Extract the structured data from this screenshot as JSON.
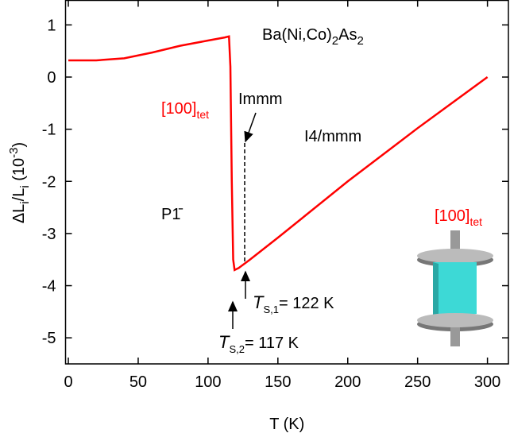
{
  "chart_data": {
    "type": "line",
    "x_label": "T (K)",
    "y_label": [
      {
        "text": "ΔL"
      },
      {
        "text": "i",
        "sub": true
      },
      {
        "text": "/L"
      },
      {
        "text": "i",
        "sub": true
      },
      {
        "text": " (10"
      },
      {
        "text": "-3",
        "sup": true
      },
      {
        "text": ")"
      }
    ],
    "xlim": [
      -2,
      315
    ],
    "ylim": [
      -5.5,
      1.47
    ],
    "xticks": [
      0,
      50,
      100,
      150,
      200,
      250,
      300
    ],
    "yticks": [
      -5,
      -4,
      -3,
      -2,
      -1,
      0,
      1
    ],
    "series": [
      {
        "color": "#ff0000",
        "x": [
          0,
          20,
          40,
          60,
          80,
          100,
          112,
          115,
          116,
          117,
          118,
          119,
          122,
          130,
          150,
          200,
          250,
          300
        ],
        "values": [
          0.32,
          0.32,
          0.36,
          0.47,
          0.6,
          0.7,
          0.76,
          0.78,
          0.2,
          -2,
          -3.5,
          -3.7,
          -3.66,
          -3.5,
          -3.08,
          -2.0,
          -0.98,
          0.0
        ]
      }
    ],
    "annotations": {
      "compound": [
        "Ba(Ni,Co)",
        "2",
        "As",
        "2"
      ],
      "direction": [
        "[100]",
        "tet"
      ],
      "immm": "Immm",
      "i4": "I4/mmm",
      "p1": "P1̄",
      "ts1": [
        "T",
        "S,1",
        "= 122 K"
      ],
      "ts2": [
        "T",
        "S,2",
        "= 117 K"
      ],
      "inset": [
        "[100]",
        "tet"
      ]
    }
  }
}
